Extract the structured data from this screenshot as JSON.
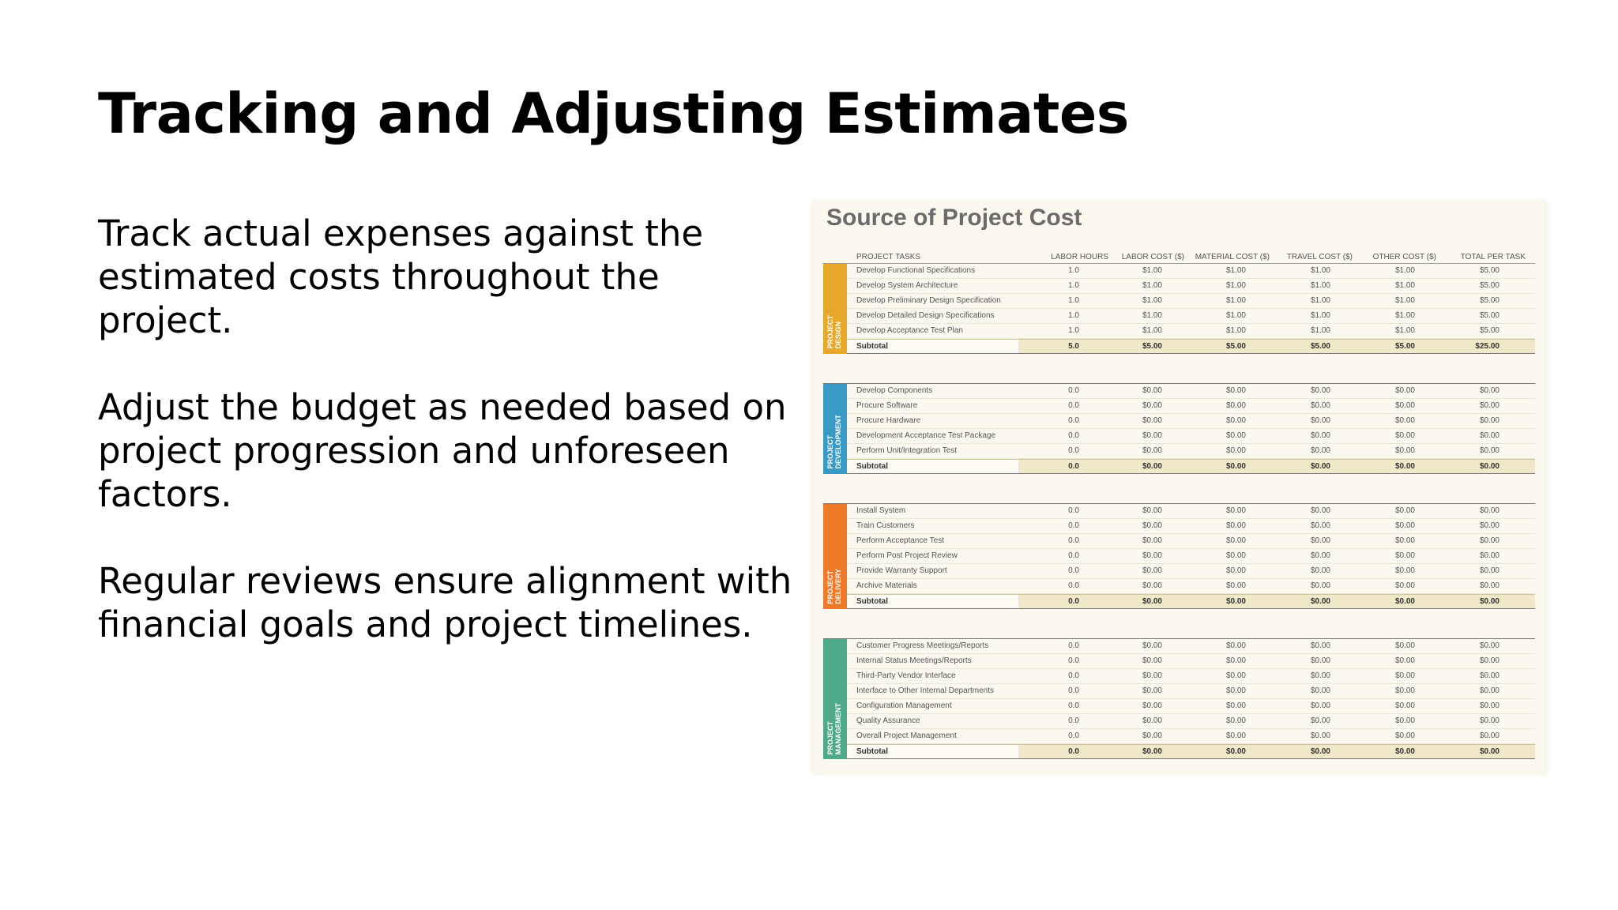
{
  "slide": {
    "title": "Tracking and Adjusting Estimates",
    "paragraphs": [
      "Track actual expenses against the estimated costs throughout the project.",
      "Adjust the budget as needed based on project progression and unforeseen factors.",
      "Regular reviews ensure alignment with financial goals and project timelines."
    ]
  },
  "sheet": {
    "title": "Source of Project Cost",
    "headers": [
      "PROJECT TASKS",
      "LABOR HOURS",
      "LABOR COST ($)",
      "MATERIAL COST ($)",
      "TRAVEL COST ($)",
      "OTHER COST ($)",
      "TOTAL PER TASK"
    ],
    "sections": [
      {
        "label": "PROJECT\nDESIGN",
        "color": "#e8a82b",
        "rows": [
          [
            "Develop Functional Specifications",
            "1.0",
            "$1.00",
            "$1.00",
            "$1.00",
            "$1.00",
            "$5.00"
          ],
          [
            "Develop System Architecture",
            "1.0",
            "$1.00",
            "$1.00",
            "$1.00",
            "$1.00",
            "$5.00"
          ],
          [
            "Develop Preliminary Design Specification",
            "1.0",
            "$1.00",
            "$1.00",
            "$1.00",
            "$1.00",
            "$5.00"
          ],
          [
            "Develop Detailed Design Specifications",
            "1.0",
            "$1.00",
            "$1.00",
            "$1.00",
            "$1.00",
            "$5.00"
          ],
          [
            "Develop Acceptance Test Plan",
            "1.0",
            "$1.00",
            "$1.00",
            "$1.00",
            "$1.00",
            "$5.00"
          ]
        ],
        "subtotal": [
          "Subtotal",
          "5.0",
          "$5.00",
          "$5.00",
          "$5.00",
          "$5.00",
          "$25.00"
        ]
      },
      {
        "label": "PROJECT\nDEVELOPMENT",
        "color": "#3a9ac6",
        "rows": [
          [
            "Develop Components",
            "0.0",
            "$0.00",
            "$0.00",
            "$0.00",
            "$0.00",
            "$0.00"
          ],
          [
            "Procure Software",
            "0.0",
            "$0.00",
            "$0.00",
            "$0.00",
            "$0.00",
            "$0.00"
          ],
          [
            "Procure Hardware",
            "0.0",
            "$0.00",
            "$0.00",
            "$0.00",
            "$0.00",
            "$0.00"
          ],
          [
            "Development Acceptance Test Package",
            "0.0",
            "$0.00",
            "$0.00",
            "$0.00",
            "$0.00",
            "$0.00"
          ],
          [
            "Perform Unit/Integration Test",
            "0.0",
            "$0.00",
            "$0.00",
            "$0.00",
            "$0.00",
            "$0.00"
          ]
        ],
        "subtotal": [
          "Subtotal",
          "0.0",
          "$0.00",
          "$0.00",
          "$0.00",
          "$0.00",
          "$0.00"
        ]
      },
      {
        "label": "PROJECT\nDELIVERY",
        "color": "#ee7a2a",
        "rows": [
          [
            "Install System",
            "0.0",
            "$0.00",
            "$0.00",
            "$0.00",
            "$0.00",
            "$0.00"
          ],
          [
            "Train Customers",
            "0.0",
            "$0.00",
            "$0.00",
            "$0.00",
            "$0.00",
            "$0.00"
          ],
          [
            "Perform Acceptance Test",
            "0.0",
            "$0.00",
            "$0.00",
            "$0.00",
            "$0.00",
            "$0.00"
          ],
          [
            "Perform Post Project Review",
            "0.0",
            "$0.00",
            "$0.00",
            "$0.00",
            "$0.00",
            "$0.00"
          ],
          [
            "Provide Warranty Support",
            "0.0",
            "$0.00",
            "$0.00",
            "$0.00",
            "$0.00",
            "$0.00"
          ],
          [
            "Archive Materials",
            "0.0",
            "$0.00",
            "$0.00",
            "$0.00",
            "$0.00",
            "$0.00"
          ]
        ],
        "subtotal": [
          "Subtotal",
          "0.0",
          "$0.00",
          "$0.00",
          "$0.00",
          "$0.00",
          "$0.00"
        ]
      },
      {
        "label": "PROJECT\nMANAGEMENT",
        "color": "#4faa8a",
        "rows": [
          [
            "Customer Progress Meetings/Reports",
            "0.0",
            "$0.00",
            "$0.00",
            "$0.00",
            "$0.00",
            "$0.00"
          ],
          [
            "Internal Status Meetings/Reports",
            "0.0",
            "$0.00",
            "$0.00",
            "$0.00",
            "$0.00",
            "$0.00"
          ],
          [
            "Third-Party Vendor Interface",
            "0.0",
            "$0.00",
            "$0.00",
            "$0.00",
            "$0.00",
            "$0.00"
          ],
          [
            "Interface to Other Internal Departments",
            "0.0",
            "$0.00",
            "$0.00",
            "$0.00",
            "$0.00",
            "$0.00"
          ],
          [
            "Configuration Management",
            "0.0",
            "$0.00",
            "$0.00",
            "$0.00",
            "$0.00",
            "$0.00"
          ],
          [
            "Quality Assurance",
            "0.0",
            "$0.00",
            "$0.00",
            "$0.00",
            "$0.00",
            "$0.00"
          ],
          [
            "Overall Project Management",
            "0.0",
            "$0.00",
            "$0.00",
            "$0.00",
            "$0.00",
            "$0.00"
          ]
        ],
        "subtotal": [
          "Subtotal",
          "0.0",
          "$0.00",
          "$0.00",
          "$0.00",
          "$0.00",
          "$0.00"
        ]
      }
    ]
  }
}
